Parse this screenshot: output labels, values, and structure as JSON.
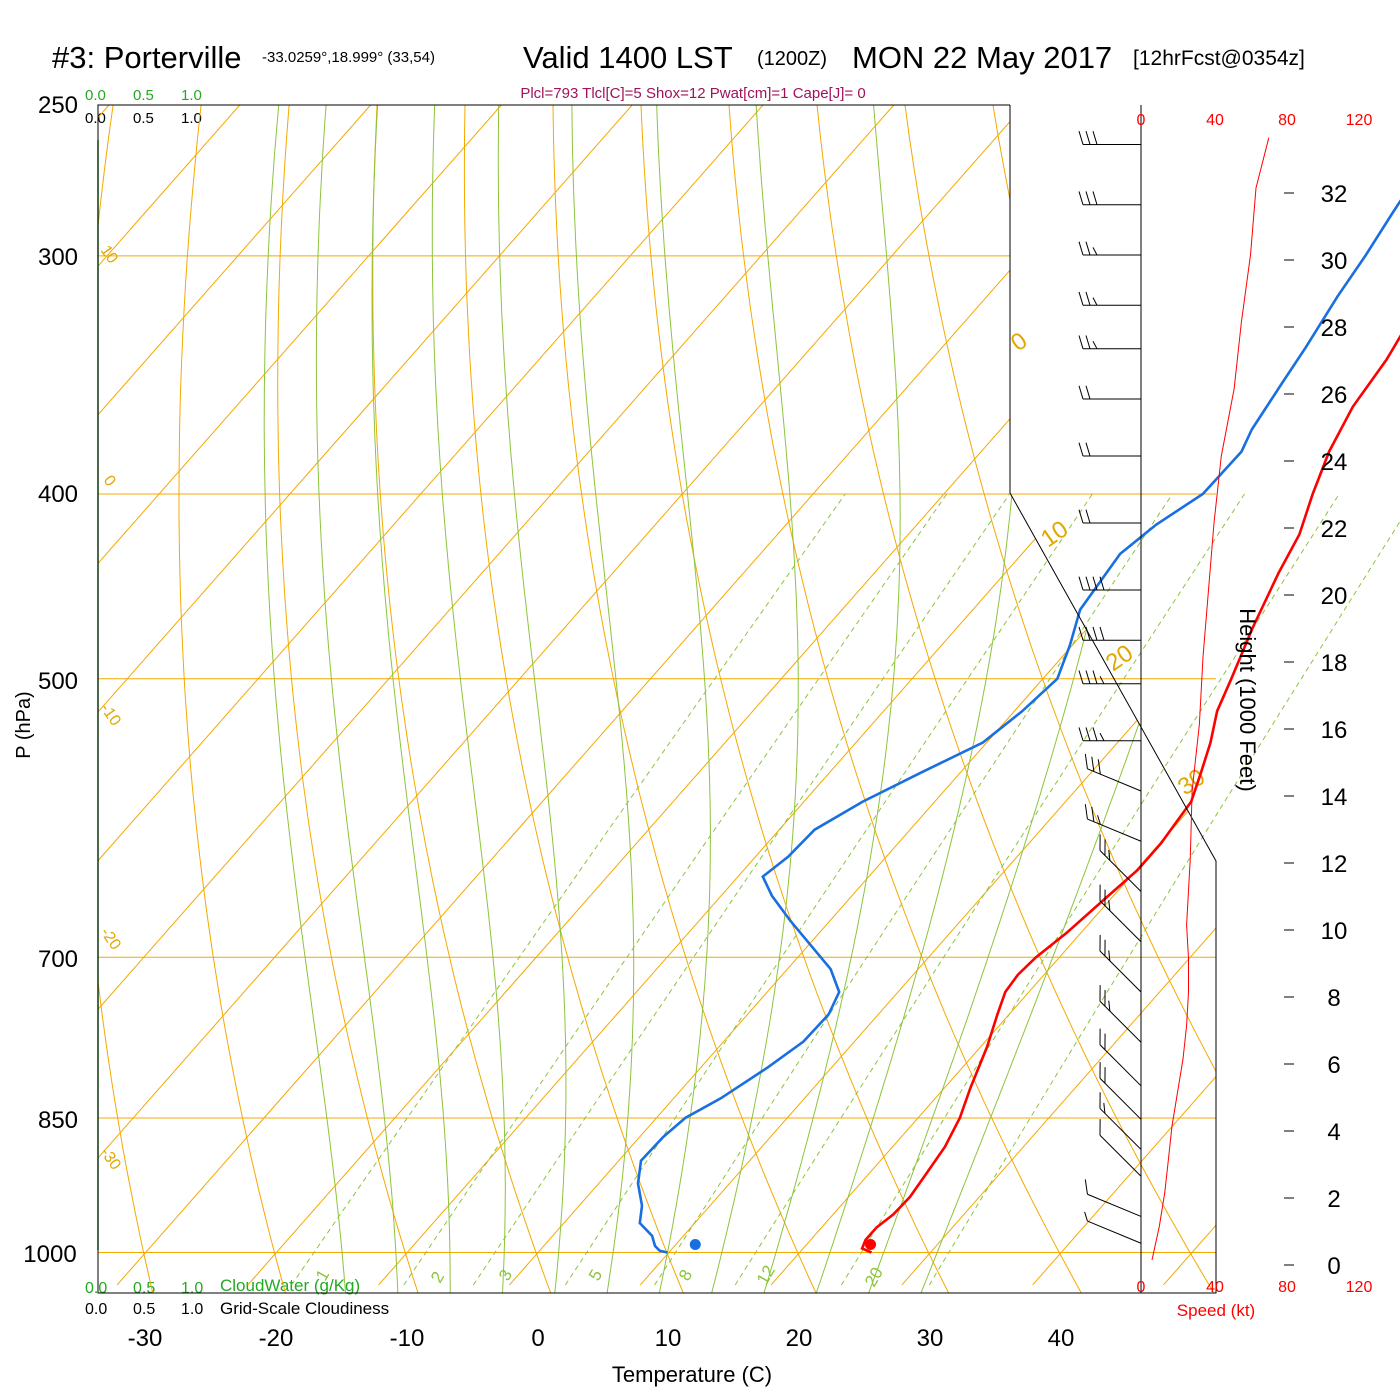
{
  "header": {
    "station": "#3: Porterville",
    "coords": "-33.0259°,18.999° (33,54)",
    "valid": "Valid 1400 LST",
    "zulu": "(1200Z)",
    "date": "MON 22 May 2017",
    "forecast": "[12hrFcst@0354z]",
    "indices": "Plcl=793 Tlcl[C]=5 Shox=12 Pwat[cm]=1 Cape[J]= 0"
  },
  "colors": {
    "temperature": "#ff0000",
    "dewpoint": "#1a6fe0",
    "isobars_isotherms": "#f5a800",
    "dry_adiabats": "#f5a800",
    "moist_adiabats": "#8cc43c",
    "mixing_ratio": "#8cc43c",
    "cloud": "#22aa22",
    "wind_speed": "#ff0000"
  },
  "chart_data": {
    "type": "skew-t",
    "ylabel": "P (hPa)",
    "xlabel": "Temperature (C)",
    "x_ticks": [
      -30,
      -20,
      -10,
      0,
      10,
      20,
      30,
      40
    ],
    "pressure_ticks": [
      250,
      300,
      400,
      500,
      700,
      850,
      1000
    ],
    "temp_range": [
      -33,
      36
    ],
    "pressure_range": [
      1040,
      250
    ],
    "isotherm_labels": [
      "10",
      "0",
      "-10",
      "-20",
      "-30"
    ],
    "dry_adiabat_labels": [
      "0",
      "10",
      "20",
      "30"
    ],
    "moist_adiabat_labels": [
      "8",
      "12",
      "20"
    ],
    "mixing_ratio_labels": [
      "1",
      "2",
      "3",
      "5",
      "8",
      "12",
      "20"
    ],
    "temperature_profile": {
      "name": "Temperature",
      "points": [
        [
          1000,
          25.5
        ],
        [
          995,
          24.5
        ],
        [
          985,
          24.2
        ],
        [
          970,
          24.2
        ],
        [
          955,
          24.6
        ],
        [
          935,
          24.7
        ],
        [
          910,
          24.4
        ],
        [
          880,
          24
        ],
        [
          850,
          23.2
        ],
        [
          820,
          22
        ],
        [
          780,
          20.5
        ],
        [
          750,
          19.1
        ],
        [
          730,
          18.2
        ],
        [
          715,
          18
        ],
        [
          700,
          18.2
        ],
        [
          680,
          18.9
        ],
        [
          650,
          19.6
        ],
        [
          630,
          20.1
        ],
        [
          610,
          20.1
        ],
        [
          580,
          19.6
        ],
        [
          560,
          18.4
        ],
        [
          540,
          17.1
        ],
        [
          520,
          15.5
        ],
        [
          500,
          14.4
        ],
        [
          470,
          12.6
        ],
        [
          440,
          10.9
        ],
        [
          420,
          9.9
        ],
        [
          400,
          8.2
        ],
        [
          380,
          6.6
        ],
        [
          360,
          5.4
        ],
        [
          340,
          4.8
        ],
        [
          320,
          3.7
        ],
        [
          300,
          2.4
        ],
        [
          280,
          1
        ],
        [
          262,
          0
        ]
      ]
    },
    "dewpoint_profile": {
      "name": "Dewpoint",
      "points": [
        [
          1000,
          9.9
        ],
        [
          998,
          9.2
        ],
        [
          992,
          8.5
        ],
        [
          980,
          7.6
        ],
        [
          965,
          5.8
        ],
        [
          945,
          4.8
        ],
        [
          920,
          3
        ],
        [
          895,
          1.7
        ],
        [
          870,
          1.8
        ],
        [
          850,
          2.2
        ],
        [
          830,
          3.6
        ],
        [
          800,
          5.1
        ],
        [
          775,
          6.1
        ],
        [
          750,
          6.2
        ],
        [
          730,
          5.5
        ],
        [
          710,
          3.3
        ],
        [
          690,
          0.2
        ],
        [
          670,
          -3
        ],
        [
          650,
          -6.1
        ],
        [
          635,
          -8.1
        ],
        [
          620,
          -7.5
        ],
        [
          600,
          -7.3
        ],
        [
          580,
          -5.5
        ],
        [
          560,
          -3
        ],
        [
          540,
          -0.3
        ],
        [
          520,
          0.6
        ],
        [
          500,
          1.1
        ],
        [
          480,
          -0.2
        ],
        [
          460,
          -1.8
        ],
        [
          430,
          -2.5
        ],
        [
          415,
          -1.7
        ],
        [
          400,
          -0.2
        ],
        [
          380,
          -0.1
        ],
        [
          370,
          -0.8
        ],
        [
          350,
          -1.6
        ],
        [
          335,
          -2.2
        ],
        [
          315,
          -3.2
        ],
        [
          300,
          -3.8
        ],
        [
          285,
          -4.6
        ],
        [
          262,
          -5.8
        ]
      ]
    },
    "surface_temp_dot": [
      1000,
      25.5
    ],
    "surface_dewpoint_dot": [
      1000,
      12.1
    ],
    "height_axis": {
      "label": "Height (1000 Feet)",
      "ticks": [
        "0",
        "2",
        "4",
        "6",
        "8",
        "10",
        "12",
        "14",
        "16",
        "18",
        "20",
        "22",
        "24",
        "26",
        "28",
        "30",
        "32"
      ]
    },
    "wind_speed_axis": {
      "label": "Speed (kt)",
      "ticks": [
        "0",
        "40",
        "80",
        "120"
      ]
    },
    "cloud_axis": {
      "cloudwater_label": "CloudWater (g/Kg)",
      "cloudiness_label": "Grid-Scale Cloudiness",
      "ticks": [
        "0.0",
        "0.5",
        "1.0"
      ]
    },
    "wind_speed_profile": {
      "name": "Wind speed (kt)",
      "points": [
        [
          0,
          6
        ],
        [
          1,
          10
        ],
        [
          2,
          13
        ],
        [
          3,
          15
        ],
        [
          4,
          17
        ],
        [
          5,
          20
        ],
        [
          6,
          23
        ],
        [
          7,
          25
        ],
        [
          8,
          26
        ],
        [
          9,
          26
        ],
        [
          10,
          25
        ],
        [
          12,
          27
        ],
        [
          14,
          28
        ],
        [
          16,
          32
        ],
        [
          18,
          34
        ],
        [
          20,
          37
        ],
        [
          22,
          40
        ],
        [
          24,
          44
        ],
        [
          26,
          51
        ],
        [
          28,
          55
        ],
        [
          30,
          60
        ],
        [
          32,
          63
        ],
        [
          33.5,
          70
        ]
      ]
    },
    "wind_barbs": [
      {
        "height_kft": 0.5,
        "speed_kt": 5,
        "direction": "WNW"
      },
      {
        "height_kft": 1.3,
        "speed_kt": 10,
        "direction": "WNW"
      },
      {
        "height_kft": 2.5,
        "speed_kt": 10,
        "direction": "NW"
      },
      {
        "height_kft": 3.3,
        "speed_kt": 15,
        "direction": "NW"
      },
      {
        "height_kft": 4.2,
        "speed_kt": 20,
        "direction": "NW"
      },
      {
        "height_kft": 5.2,
        "speed_kt": 20,
        "direction": "NW"
      },
      {
        "height_kft": 6.5,
        "speed_kt": 25,
        "direction": "NW"
      },
      {
        "height_kft": 8,
        "speed_kt": 25,
        "direction": "NW"
      },
      {
        "height_kft": 9.5,
        "speed_kt": 25,
        "direction": "NW"
      },
      {
        "height_kft": 11,
        "speed_kt": 25,
        "direction": "NW"
      },
      {
        "height_kft": 12.5,
        "speed_kt": 25,
        "direction": "WNW"
      },
      {
        "height_kft": 14,
        "speed_kt": 30,
        "direction": "WNW"
      },
      {
        "height_kft": 15.5,
        "speed_kt": 35,
        "direction": "W"
      },
      {
        "height_kft": 17.2,
        "speed_kt": 35,
        "direction": "W"
      },
      {
        "height_kft": 18.5,
        "speed_kt": 40,
        "direction": "W"
      },
      {
        "height_kft": 20,
        "speed_kt": 40,
        "direction": "W"
      },
      {
        "height_kft": 22,
        "speed_kt": 50,
        "direction": "W"
      },
      {
        "height_kft": 24,
        "speed_kt": 50,
        "direction": "W"
      },
      {
        "height_kft": 25.7,
        "speed_kt": 50,
        "direction": "W"
      },
      {
        "height_kft": 27.2,
        "speed_kt": 55,
        "direction": "W"
      },
      {
        "height_kft": 28.5,
        "speed_kt": 55,
        "direction": "W"
      },
      {
        "height_kft": 30,
        "speed_kt": 55,
        "direction": "W"
      },
      {
        "height_kft": 31.5,
        "speed_kt": 60,
        "direction": "W"
      },
      {
        "height_kft": 33.3,
        "speed_kt": 60,
        "direction": "W"
      }
    ]
  }
}
